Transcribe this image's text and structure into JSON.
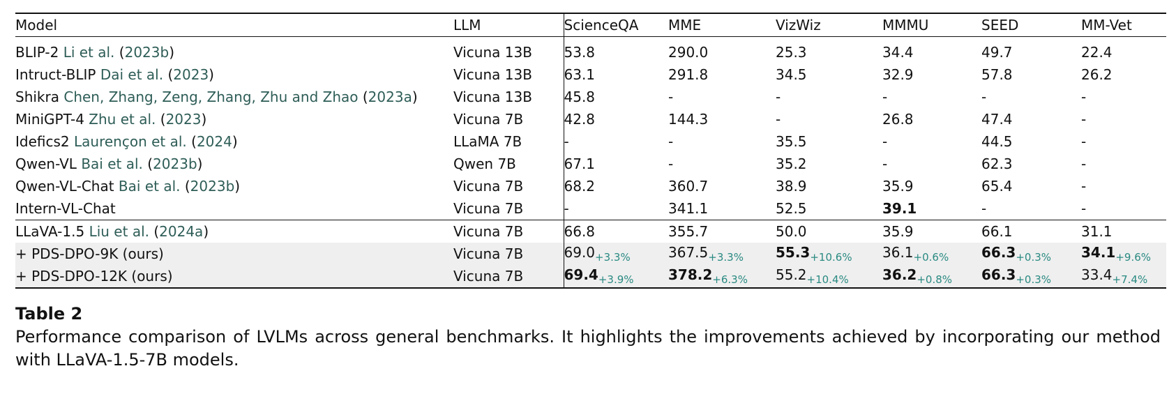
{
  "table": {
    "headers": [
      "Model",
      "LLM",
      "ScienceQA",
      "MME",
      "VizWiz",
      "MMMU",
      "SEED",
      "MM-Vet"
    ],
    "baseline_rows": [
      {
        "model": "BLIP-2",
        "cite": "Li et al.",
        "year": "2023b",
        "llm": "Vicuna 13B",
        "cells": [
          {
            "v": "53.8"
          },
          {
            "v": "290.0"
          },
          {
            "v": "25.3"
          },
          {
            "v": "34.4"
          },
          {
            "v": "49.7"
          },
          {
            "v": "22.4"
          }
        ]
      },
      {
        "model": "Intruct-BLIP",
        "cite": "Dai et al.",
        "year": "2023",
        "llm": "Vicuna 13B",
        "cells": [
          {
            "v": "63.1"
          },
          {
            "v": "291.8"
          },
          {
            "v": "34.5"
          },
          {
            "v": "32.9"
          },
          {
            "v": "57.8"
          },
          {
            "v": "26.2"
          }
        ]
      },
      {
        "model": "Shikra",
        "cite": "Chen, Zhang, Zeng, Zhang, Zhu and Zhao",
        "year": "2023a",
        "llm": "Vicuna 13B",
        "cells": [
          {
            "v": "45.8"
          },
          {
            "v": "-"
          },
          {
            "v": "-"
          },
          {
            "v": "-"
          },
          {
            "v": "-"
          },
          {
            "v": "-"
          }
        ]
      },
      {
        "model": "MiniGPT-4",
        "cite": "Zhu et al.",
        "year": "2023",
        "llm": "Vicuna 7B",
        "cells": [
          {
            "v": "42.8"
          },
          {
            "v": "144.3"
          },
          {
            "v": "-"
          },
          {
            "v": "26.8"
          },
          {
            "v": "47.4"
          },
          {
            "v": "-"
          }
        ]
      },
      {
        "model": "Idefics2",
        "cite": "Laurençon et al.",
        "year": "2024",
        "llm": "LLaMA 7B",
        "cells": [
          {
            "v": "-"
          },
          {
            "v": "-"
          },
          {
            "v": "35.5"
          },
          {
            "v": "-"
          },
          {
            "v": "44.5"
          },
          {
            "v": "-"
          }
        ]
      },
      {
        "model": "Qwen-VL",
        "cite": "Bai et al.",
        "year": "2023b",
        "llm": "Qwen 7B",
        "cells": [
          {
            "v": "67.1"
          },
          {
            "v": "-"
          },
          {
            "v": "35.2"
          },
          {
            "v": "-"
          },
          {
            "v": "62.3"
          },
          {
            "v": "-"
          }
        ]
      },
      {
        "model": "Qwen-VL-Chat",
        "cite": "Bai et al.",
        "year": "2023b",
        "llm": "Vicuna 7B",
        "cells": [
          {
            "v": "68.2"
          },
          {
            "v": "360.7"
          },
          {
            "v": "38.9"
          },
          {
            "v": "35.9"
          },
          {
            "v": "65.4"
          },
          {
            "v": "-"
          }
        ]
      },
      {
        "model": "Intern-VL-Chat",
        "cite": "",
        "year": "",
        "llm": "Vicuna 7B",
        "cells": [
          {
            "v": "-"
          },
          {
            "v": "341.1"
          },
          {
            "v": "52.5"
          },
          {
            "v": "39.1",
            "bold": true
          },
          {
            "v": "-"
          },
          {
            "v": "-"
          }
        ]
      }
    ],
    "ours_rows": [
      {
        "model": "LLaVA-1.5",
        "cite": "Liu et al.",
        "year": "2024a",
        "llm": "Vicuna 7B",
        "shaded": false,
        "cells": [
          {
            "v": "66.8"
          },
          {
            "v": "355.7"
          },
          {
            "v": "50.0"
          },
          {
            "v": "35.9"
          },
          {
            "v": "66.1"
          },
          {
            "v": "31.1"
          }
        ]
      },
      {
        "model": "+ PDS-DPO-9K (ours)",
        "cite": "",
        "year": "",
        "llm": "Vicuna 7B",
        "shaded": true,
        "cells": [
          {
            "v": "69.0",
            "gain": "+3.3%"
          },
          {
            "v": "367.5",
            "gain": "+3.3%"
          },
          {
            "v": "55.3",
            "gain": "+10.6%",
            "bold": true
          },
          {
            "v": "36.1",
            "gain": "+0.6%"
          },
          {
            "v": "66.3",
            "gain": "+0.3%",
            "bold": true
          },
          {
            "v": "34.1",
            "gain": "+9.6%",
            "bold": true
          }
        ]
      },
      {
        "model": "+ PDS-DPO-12K (ours)",
        "cite": "",
        "year": "",
        "llm": "Vicuna 7B",
        "shaded": true,
        "cells": [
          {
            "v": "69.4",
            "gain": "+3.9%",
            "bold": true
          },
          {
            "v": "378.2",
            "gain": "+6.3%",
            "bold": true
          },
          {
            "v": "55.2",
            "gain": "+10.4%"
          },
          {
            "v": "36.2",
            "gain": "+0.8%",
            "bold": true
          },
          {
            "v": "66.3",
            "gain": "+0.3%",
            "bold": true
          },
          {
            "v": "33.4",
            "gain": "+7.4%"
          }
        ]
      }
    ]
  },
  "caption": {
    "label": "Table 2",
    "text": "Performance comparison of LVLMs across general benchmarks. It highlights the improvements achieved by incorporating our method with LLaVA-1.5-7B models."
  }
}
